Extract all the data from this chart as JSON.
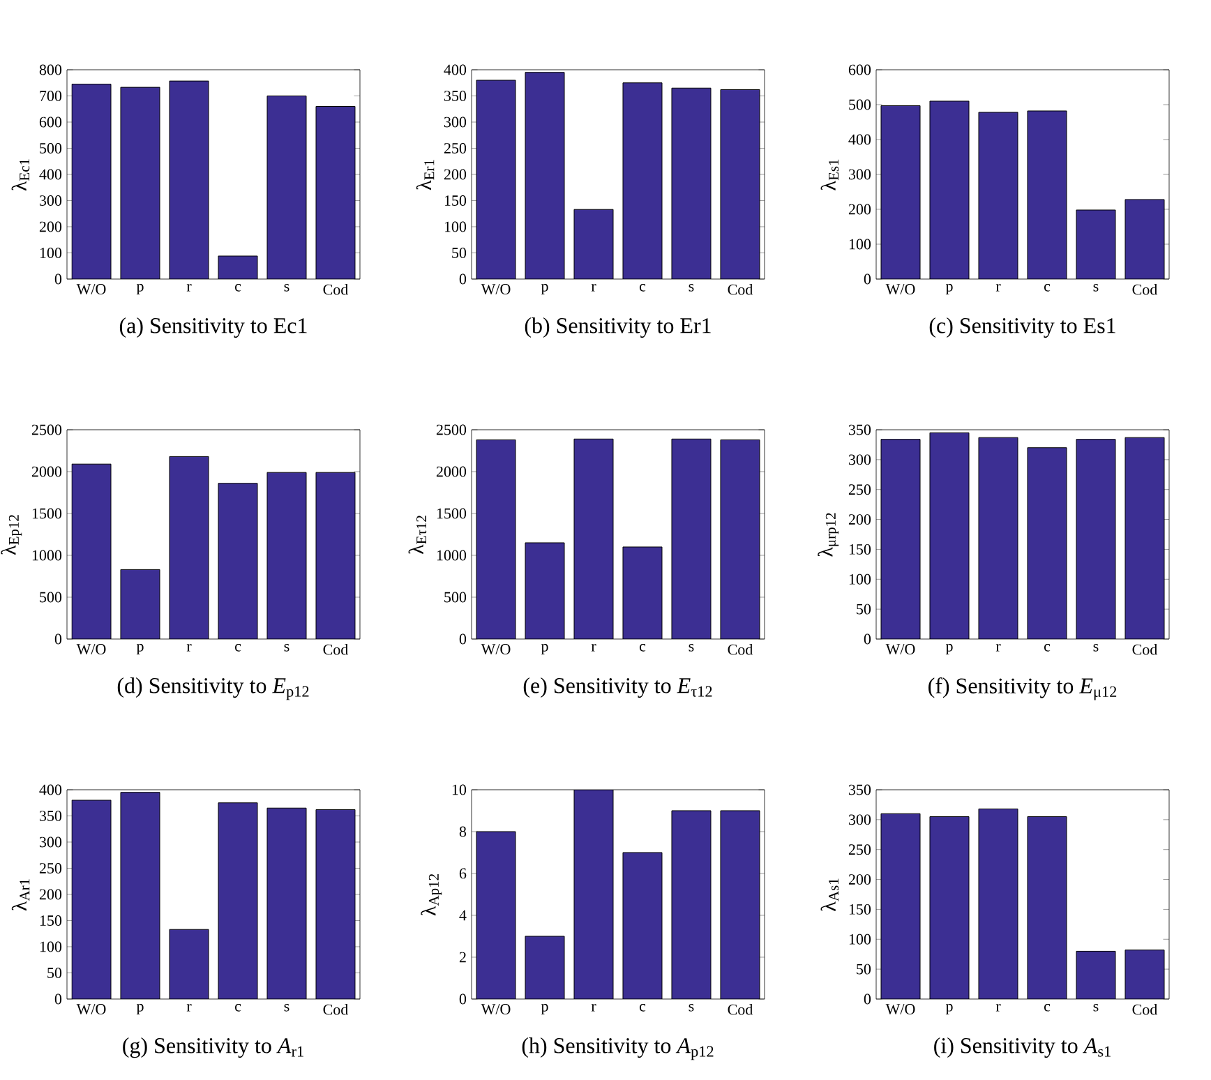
{
  "chart_data": [
    {
      "type": "bar",
      "title": "(a) Sensitivity to Ec1",
      "ylabel": "λ$_{Ec1}$",
      "categories": [
        "W/O",
        "p",
        "r",
        "c",
        "s",
        "Cod"
      ],
      "values": [
        745,
        733,
        757,
        88,
        700,
        660
      ],
      "color": "#3c2f93",
      "ylim": [
        0,
        800
      ],
      "yticks": [
        0,
        100,
        200,
        300,
        400,
        500,
        600,
        700,
        800
      ]
    },
    {
      "type": "bar",
      "title": "(b) Sensitivity to Er1",
      "ylabel": "λ$_{Er1}$",
      "categories": [
        "W/O",
        "p",
        "r",
        "c",
        "s",
        "Cod"
      ],
      "values": [
        380,
        395,
        133,
        375,
        365,
        362
      ],
      "color": "#3c2f93",
      "ylim": [
        0,
        400
      ],
      "yticks": [
        0,
        50,
        100,
        150,
        200,
        250,
        300,
        350,
        400
      ]
    },
    {
      "type": "bar",
      "title": "(c) Sensitivity to Es1",
      "ylabel": "λ$_{Es1}$",
      "categories": [
        "W/O",
        "p",
        "r",
        "c",
        "s",
        "Cod"
      ],
      "values": [
        497,
        510,
        478,
        482,
        198,
        228
      ],
      "color": "#3c2f93",
      "ylim": [
        0,
        600
      ],
      "yticks": [
        0,
        100,
        200,
        300,
        400,
        500,
        600
      ]
    },
    {
      "type": "bar",
      "title": "(d) Sensitivity to *E*$_{p12}$",
      "ylabel": "λ$_{Ep12}$",
      "categories": [
        "W/O",
        "p",
        "r",
        "c",
        "s",
        "Cod"
      ],
      "values": [
        2090,
        830,
        2180,
        1860,
        1990,
        1990
      ],
      "color": "#3c2f93",
      "ylim": [
        0,
        2500
      ],
      "yticks": [
        0,
        500,
        1000,
        1500,
        2000,
        2500
      ]
    },
    {
      "type": "bar",
      "title": "(e) Sensitivity to *E*$_{τ12}$",
      "ylabel": "λ$_{Eτ12}$",
      "categories": [
        "W/O",
        "p",
        "r",
        "c",
        "s",
        "Cod"
      ],
      "values": [
        2380,
        1150,
        2390,
        1100,
        2390,
        2380
      ],
      "color": "#3c2f93",
      "ylim": [
        0,
        2500
      ],
      "yticks": [
        0,
        500,
        1000,
        1500,
        2000,
        2500
      ]
    },
    {
      "type": "bar",
      "title": "(f) Sensitivity to *E*$_{μ12}$",
      "ylabel": "λ$_{μrp12}$",
      "categories": [
        "W/O",
        "p",
        "r",
        "c",
        "s",
        "Cod"
      ],
      "values": [
        334,
        345,
        337,
        320,
        334,
        337
      ],
      "color": "#3c2f93",
      "ylim": [
        0,
        350
      ],
      "yticks": [
        0,
        50,
        100,
        150,
        200,
        250,
        300,
        350
      ]
    },
    {
      "type": "bar",
      "title": "(g) Sensitivity to *A*$_{r1}$",
      "ylabel": "λ$_{Ar1}$",
      "categories": [
        "W/O",
        "p",
        "r",
        "c",
        "s",
        "Cod"
      ],
      "values": [
        380,
        395,
        133,
        375,
        365,
        362
      ],
      "color": "#3c2f93",
      "ylim": [
        0,
        400
      ],
      "yticks": [
        0,
        50,
        100,
        150,
        200,
        250,
        300,
        350,
        400
      ]
    },
    {
      "type": "bar",
      "title": "(h) Sensitivity to *A*$_{p12}$",
      "ylabel": "λ$_{Ap12}$",
      "categories": [
        "W/O",
        "p",
        "r",
        "c",
        "s",
        "Cod"
      ],
      "values": [
        8,
        3,
        10,
        7,
        9,
        9
      ],
      "color": "#3c2f93",
      "ylim": [
        0,
        10
      ],
      "yticks": [
        0,
        2,
        4,
        6,
        8,
        10
      ]
    },
    {
      "type": "bar",
      "title": "(i) Sensitivity to *A*$_{s1}$",
      "ylabel": "λ$_{As1}$",
      "categories": [
        "W/O",
        "p",
        "r",
        "c",
        "s",
        "Cod"
      ],
      "values": [
        310,
        305,
        318,
        305,
        80,
        82
      ],
      "color": "#3c2f93",
      "ylim": [
        0,
        350
      ],
      "yticks": [
        0,
        50,
        100,
        150,
        200,
        250,
        300,
        350
      ]
    }
  ]
}
